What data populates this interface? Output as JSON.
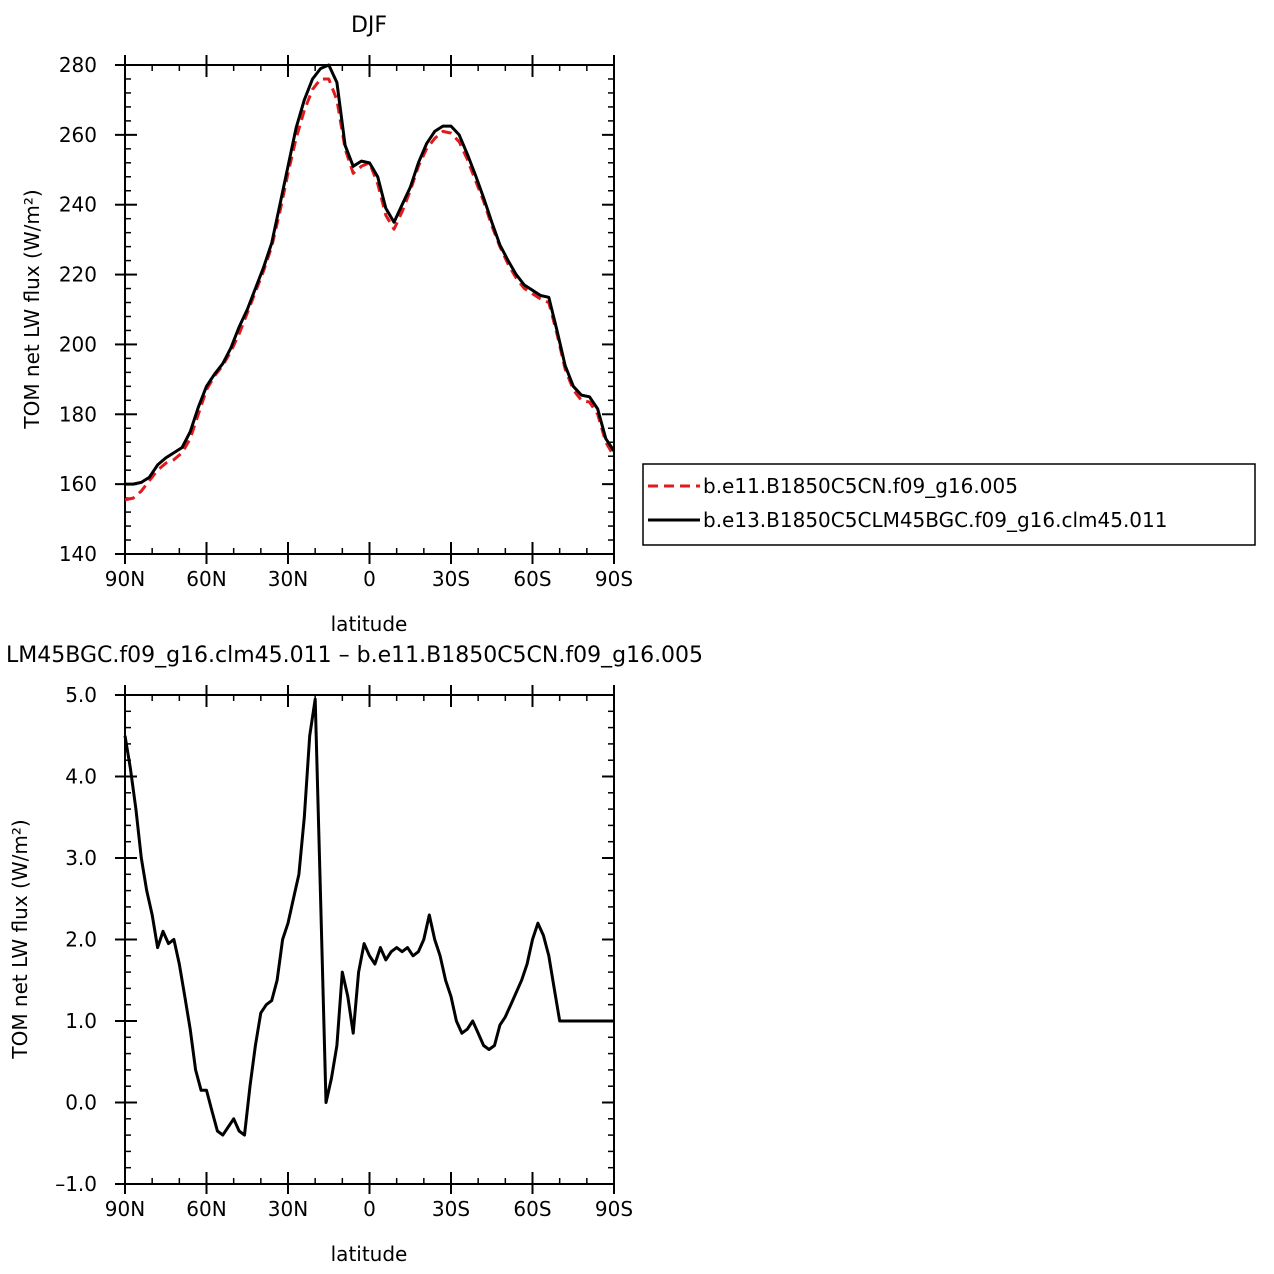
{
  "chart_data": [
    {
      "type": "line",
      "title": "DJF",
      "xlabel": "latitude",
      "ylabel": "TOM net LW flux (W/m²)",
      "xlim": [
        90,
        -90
      ],
      "ylim": [
        140,
        280
      ],
      "xticks": [
        90,
        60,
        30,
        0,
        -30,
        -60,
        -90
      ],
      "xticklabels": [
        "90N",
        "60N",
        "30N",
        "0",
        "30S",
        "60S",
        "90S"
      ],
      "yticks": [
        140,
        160,
        180,
        200,
        220,
        240,
        260,
        280
      ],
      "yticklabels": [
        "140",
        "160",
        "180",
        "200",
        "220",
        "240",
        "260",
        "280"
      ],
      "legend_position": "right",
      "series": [
        {
          "name": "b.e11.B1850C5CN.f09_g16.005",
          "color": "#e31a1c",
          "dash": "dashed",
          "x": [
            90,
            87,
            84,
            81,
            78,
            75,
            72,
            69,
            66,
            63,
            60,
            57,
            54,
            51,
            48,
            45,
            42,
            39,
            36,
            33,
            30,
            27,
            24,
            21,
            18,
            15,
            12,
            9,
            6,
            3,
            0,
            -3,
            -6,
            -9,
            -12,
            -15,
            -18,
            -21,
            -24,
            -27,
            -30,
            -33,
            -36,
            -39,
            -42,
            -45,
            -48,
            -51,
            -54,
            -57,
            -60,
            -63,
            -66,
            -69,
            -72,
            -75,
            -78,
            -81,
            -84,
            -87,
            -90
          ],
          "y": [
            155.5,
            156,
            158,
            161,
            164,
            166,
            167,
            169,
            173,
            180,
            187,
            191,
            194,
            198,
            203,
            209,
            215,
            221,
            228,
            238,
            249,
            259,
            267,
            273,
            276,
            276,
            270,
            256,
            249,
            251,
            252,
            246,
            237,
            233,
            238,
            244,
            251,
            256,
            259,
            261,
            260.5,
            258,
            253,
            247,
            241,
            234,
            228,
            223,
            219,
            216,
            214.5,
            213,
            212,
            203,
            193,
            187,
            184,
            183.5,
            180,
            172,
            168
          ]
        },
        {
          "name": "b.e13.B1850C5CLM45BGC.f09_g16.clm45.011",
          "color": "#000000",
          "dash": "solid",
          "x": [
            90,
            87,
            84,
            81,
            78,
            75,
            72,
            69,
            66,
            63,
            60,
            57,
            54,
            51,
            48,
            45,
            42,
            39,
            36,
            33,
            30,
            27,
            24,
            21,
            18,
            15,
            12,
            9,
            6,
            3,
            0,
            -3,
            -6,
            -9,
            -12,
            -15,
            -18,
            -21,
            -24,
            -27,
            -30,
            -33,
            -36,
            -39,
            -42,
            -45,
            -48,
            -51,
            -54,
            -57,
            -60,
            -63,
            -66,
            -69,
            -72,
            -75,
            -78,
            -81,
            -84,
            -87,
            -90
          ],
          "y": [
            160,
            160,
            160.5,
            162,
            165.5,
            167.5,
            169,
            170.5,
            175,
            182,
            188,
            191.5,
            194.5,
            199,
            205,
            210,
            216,
            222,
            229,
            240,
            251,
            262,
            270,
            276,
            279,
            280,
            275,
            257,
            251,
            252.5,
            252,
            248,
            239,
            235,
            240,
            245,
            252,
            257.5,
            261,
            262.5,
            262.5,
            260,
            254.5,
            248.5,
            242,
            235,
            228.5,
            224,
            220,
            217,
            215.5,
            214,
            213.5,
            204,
            194,
            188,
            185.5,
            185,
            181.5,
            173,
            169.5
          ]
        }
      ]
    },
    {
      "type": "line",
      "title": "LM45BGC.f09_g16.clm45.011 – b.e11.B1850C5CN.f09_g16.005",
      "xlabel": "latitude",
      "ylabel": "TOM net LW flux (W/m²)",
      "xlim": [
        90,
        -90
      ],
      "ylim": [
        -1.0,
        5.0
      ],
      "xticks": [
        90,
        60,
        30,
        0,
        -30,
        -60,
        -90
      ],
      "xticklabels": [
        "90N",
        "60N",
        "30N",
        "0",
        "30S",
        "60S",
        "90S"
      ],
      "yticks": [
        -1.0,
        0.0,
        1.0,
        2.0,
        3.0,
        4.0,
        5.0
      ],
      "yticklabels": [
        "–1.0",
        "0.0",
        "1.0",
        "2.0",
        "3.0",
        "4.0",
        "5.0"
      ],
      "series": [
        {
          "color": "#000000",
          "dash": "solid",
          "x": [
            90,
            88,
            86,
            84,
            82,
            80,
            78,
            76,
            74,
            72,
            70,
            68,
            66,
            64,
            62,
            60,
            58,
            56,
            54,
            52,
            50,
            48,
            46,
            44,
            42,
            40,
            38,
            36,
            34,
            32,
            30,
            28,
            26,
            24,
            22,
            20,
            18,
            16,
            14,
            12,
            10,
            8,
            6,
            4,
            2,
            0,
            -2,
            -4,
            -6,
            -8,
            -10,
            -12,
            -14,
            -16,
            -18,
            -20,
            -22,
            -24,
            -26,
            -28,
            -30,
            -32,
            -34,
            -36,
            -38,
            -40,
            -42,
            -44,
            -46,
            -48,
            -50,
            -52,
            -54,
            -56,
            -58,
            -60,
            -62,
            -64,
            -66,
            -68,
            -70,
            -72,
            -74,
            -76,
            -78,
            -80,
            -82,
            -84,
            -86,
            -88,
            -90
          ],
          "y": [
            4.5,
            4.1,
            3.6,
            3.0,
            2.6,
            2.3,
            1.9,
            2.1,
            1.95,
            2.0,
            1.7,
            1.3,
            0.9,
            0.4,
            0.15,
            0.15,
            -0.1,
            -0.35,
            -0.4,
            -0.3,
            -0.2,
            -0.35,
            -0.4,
            0.2,
            0.7,
            1.1,
            1.2,
            1.25,
            1.5,
            2.0,
            2.2,
            2.5,
            2.8,
            3.5,
            4.5,
            4.95,
            2.5,
            0.0,
            0.3,
            0.7,
            1.6,
            1.3,
            0.85,
            1.6,
            1.95,
            1.8,
            1.7,
            1.9,
            1.75,
            1.85,
            1.9,
            1.85,
            1.9,
            1.8,
            1.85,
            2.0,
            2.3,
            2.0,
            1.8,
            1.5,
            1.3,
            1.0,
            0.85,
            0.9,
            1.0,
            0.85,
            0.7,
            0.65,
            0.7,
            0.95,
            1.05,
            1.2,
            1.35,
            1.5,
            1.7,
            2.0,
            2.2,
            2.05,
            1.8,
            1.4,
            1.0,
            1.0,
            1.0,
            1.0,
            1.0,
            1.0,
            1.0,
            1.0,
            1.0,
            1.0,
            1.0
          ]
        }
      ]
    }
  ]
}
